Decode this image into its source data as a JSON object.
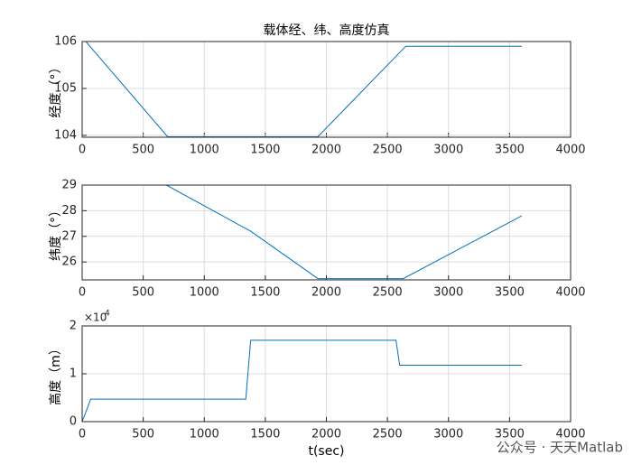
{
  "chart_data": [
    {
      "type": "line",
      "title": "载体经、纬、高度仿真",
      "ylabel": "经度（°）",
      "x": [
        30,
        700,
        1930,
        2650,
        3600
      ],
      "values": [
        106,
        103.97,
        103.97,
        105.9,
        105.9
      ],
      "color": "#0072bd",
      "xlim": [
        0,
        4000
      ],
      "xticks": [
        0,
        500,
        1000,
        1500,
        2000,
        2500,
        3000,
        3500,
        4000
      ],
      "ylim": [
        103.96,
        106
      ],
      "yticks": [
        104,
        105,
        106
      ],
      "grid": true
    },
    {
      "type": "line",
      "ylabel": "纬度（°）",
      "x": [
        0,
        690,
        1380,
        1930,
        2630,
        3600
      ],
      "values": [
        29,
        29,
        27.2,
        25.35,
        25.35,
        27.8
      ],
      "color": "#0072bd",
      "xlim": [
        0,
        4000
      ],
      "xticks": [
        0,
        500,
        1000,
        1500,
        2000,
        2500,
        3000,
        3500,
        4000
      ],
      "ylim": [
        25.3,
        29
      ],
      "yticks": [
        26,
        27,
        28,
        29
      ],
      "grid": true
    },
    {
      "type": "line",
      "ylabel": "高度（m）",
      "xlabel": "t(sec)",
      "y_exponent_base": "×10",
      "y_exponent": "4",
      "x": [
        0,
        70,
        1340,
        1380,
        2570,
        2600,
        3600
      ],
      "values": [
        0,
        4700,
        4700,
        17000,
        17000,
        11800,
        11800
      ],
      "color": "#0072bd",
      "xlim": [
        0,
        4000
      ],
      "xticks": [
        0,
        500,
        1000,
        1500,
        2000,
        2500,
        3000,
        3500,
        4000
      ],
      "ylim": [
        0,
        20000
      ],
      "yticks": [
        {
          "value": 0,
          "label": "0"
        },
        {
          "value": 10000,
          "label": "1"
        },
        {
          "value": 20000,
          "label": "2"
        }
      ],
      "grid": true
    }
  ],
  "watermark": "公众号 · 天天Matlab"
}
